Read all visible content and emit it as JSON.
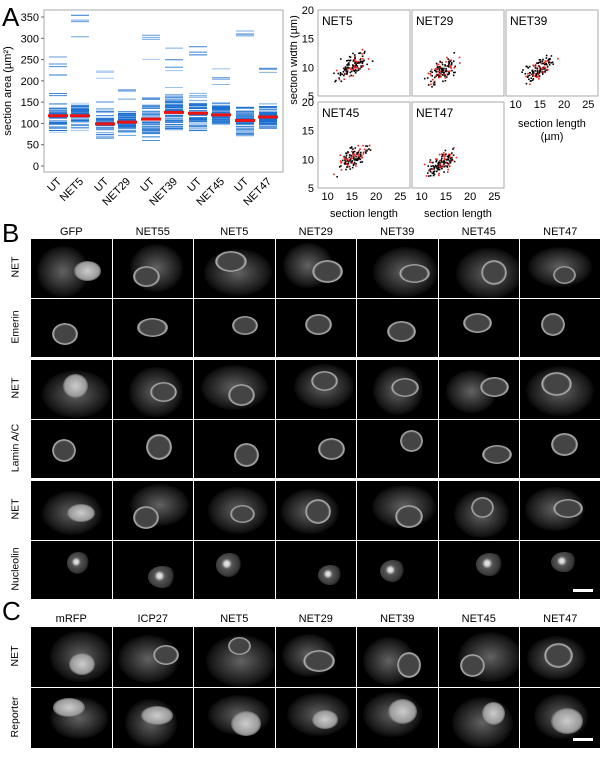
{
  "panel_labels": {
    "a": "A",
    "b": "B",
    "c": "C"
  },
  "chart_data": [
    {
      "type": "bar",
      "subtype": "distribution-lines-with-median",
      "ylabel": "section area (µm²)",
      "ylim": [
        0,
        360
      ],
      "yticks": [
        0,
        50,
        100,
        150,
        200,
        250,
        300,
        350
      ],
      "categories": [
        "UT",
        "NET5",
        "UT",
        "NET29",
        "UT",
        "NET39",
        "UT",
        "NET45",
        "UT",
        "NET47"
      ],
      "min": [
        58,
        76,
        55,
        65,
        50,
        57,
        62,
        72,
        57,
        75
      ],
      "max": [
        256,
        354,
        223,
        179,
        307,
        277,
        280,
        228,
        317,
        230
      ],
      "median": [
        118,
        118,
        99,
        103,
        110,
        126,
        124,
        120,
        107,
        115
      ],
      "colors": {
        "lines": "#1a6fd0",
        "median": "#ee1111"
      }
    },
    {
      "type": "scatter",
      "xlabel": "section length (µm)",
      "xlabel_short": "section length",
      "xlabel_unit": "(µm)",
      "ylabel": "section width (µm)",
      "xlim": [
        8,
        27
      ],
      "ylim": [
        5,
        20
      ],
      "xticks": [
        10,
        15,
        20,
        25
      ],
      "yticks": [
        5,
        10,
        15,
        20
      ],
      "panels": [
        {
          "title": "NET5",
          "center": [
            15,
            10.5
          ]
        },
        {
          "title": "NET29",
          "center": [
            14,
            9.5
          ]
        },
        {
          "title": "NET39",
          "center": [
            14.5,
            9.8
          ]
        },
        {
          "title": "NET45",
          "center": [
            15,
            10.3
          ]
        },
        {
          "title": "NET47",
          "center": [
            14,
            9.5
          ]
        }
      ],
      "series_colors": {
        "untransfected": "#000000",
        "transfected": "#ee2222"
      }
    }
  ],
  "panel_b": {
    "columns": [
      "GFP",
      "NET55",
      "NET5",
      "NET29",
      "NET39",
      "NET45",
      "NET47"
    ],
    "rows": [
      "NET",
      "Emerin",
      "NET",
      "Lamin A/C",
      "NET",
      "Nucleolin"
    ]
  },
  "panel_c": {
    "columns": [
      "mRFP",
      "ICP27",
      "NET5",
      "NET29",
      "NET39",
      "NET45",
      "NET47"
    ],
    "rows": [
      "NET",
      "Reporter"
    ]
  }
}
